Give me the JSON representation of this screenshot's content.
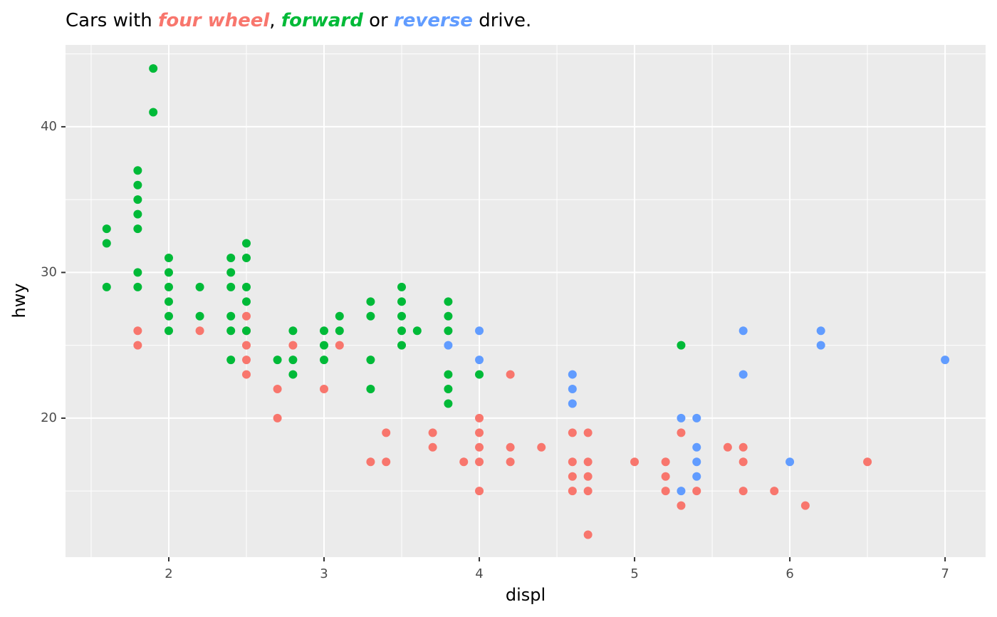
{
  "chart_data": {
    "type": "scatter",
    "title_text": [
      "Cars with ",
      ", ",
      " or ",
      " drive."
    ],
    "xlabel": "displ",
    "ylabel": "hwy",
    "xlim": [
      1.335,
      7.261
    ],
    "ylim": [
      10.46,
      45.62
    ],
    "xticks": [
      2,
      3,
      4,
      5,
      6,
      7
    ],
    "yticks": [
      20,
      30,
      40
    ],
    "xminor": [
      1.5,
      2.5,
      3.5,
      4.5,
      5.5,
      6.5
    ],
    "yminor": [
      15,
      25,
      35,
      45
    ],
    "grid": true,
    "series": [
      {
        "name": "four wheel",
        "color": "#F8766D",
        "x": [
          1.8,
          1.8,
          2.2,
          2.5,
          2.5,
          2.5,
          2.5,
          2.5,
          2.7,
          2.7,
          2.8,
          3.0,
          3.1,
          3.3,
          3.4,
          3.4,
          3.7,
          3.7,
          3.9,
          4.0,
          4.0,
          4.0,
          4.0,
          4.0,
          4.2,
          4.2,
          4.2,
          4.4,
          4.6,
          4.6,
          4.6,
          4.6,
          4.7,
          4.7,
          4.7,
          4.7,
          4.7,
          5.0,
          5.2,
          5.2,
          5.2,
          5.3,
          5.3,
          5.4,
          5.6,
          5.7,
          5.7,
          5.7,
          5.9,
          6.1,
          6.5
        ],
        "values": [
          26,
          25,
          26,
          27,
          26,
          25,
          24,
          23,
          22,
          20,
          25,
          22,
          25,
          17,
          19,
          17,
          19,
          18,
          17,
          20,
          19,
          18,
          17,
          15,
          23,
          18,
          17,
          18,
          19,
          17,
          16,
          15,
          19,
          17,
          16,
          15,
          12,
          17,
          17,
          16,
          15,
          19,
          14,
          15,
          18,
          18,
          17,
          15,
          15,
          14,
          17
        ]
      },
      {
        "name": "forward",
        "color": "#00BA38",
        "x": [
          1.6,
          1.6,
          1.6,
          1.8,
          1.8,
          1.8,
          1.8,
          1.8,
          1.8,
          1.8,
          1.9,
          1.9,
          2.0,
          2.0,
          2.0,
          2.0,
          2.0,
          2.0,
          2.2,
          2.2,
          2.4,
          2.4,
          2.4,
          2.4,
          2.4,
          2.4,
          2.5,
          2.5,
          2.5,
          2.5,
          2.5,
          2.7,
          2.8,
          2.8,
          2.8,
          3.0,
          3.0,
          3.0,
          3.1,
          3.1,
          3.3,
          3.3,
          3.3,
          3.3,
          3.5,
          3.5,
          3.5,
          3.5,
          3.5,
          3.6,
          3.8,
          3.8,
          3.8,
          3.8,
          3.8,
          3.8,
          4.0,
          5.3
        ],
        "values": [
          33,
          32,
          29,
          37,
          36,
          35,
          34,
          33,
          30,
          29,
          44,
          41,
          31,
          30,
          29,
          28,
          27,
          26,
          29,
          27,
          31,
          30,
          29,
          27,
          26,
          24,
          32,
          31,
          29,
          28,
          26,
          24,
          26,
          24,
          23,
          26,
          25,
          24,
          27,
          26,
          28,
          27,
          24,
          22,
          29,
          28,
          27,
          26,
          25,
          26,
          28,
          27,
          26,
          23,
          22,
          21,
          23,
          25
        ]
      },
      {
        "name": "reverse",
        "color": "#619CFF",
        "x": [
          3.8,
          4.0,
          4.0,
          4.6,
          4.6,
          4.6,
          5.3,
          5.3,
          5.4,
          5.4,
          5.4,
          5.4,
          5.7,
          5.7,
          6.0,
          6.2,
          6.2,
          7.0
        ],
        "values": [
          25,
          26,
          24,
          23,
          22,
          21,
          20,
          15,
          20,
          18,
          17,
          16,
          26,
          23,
          17,
          26,
          25,
          24
        ]
      }
    ]
  }
}
